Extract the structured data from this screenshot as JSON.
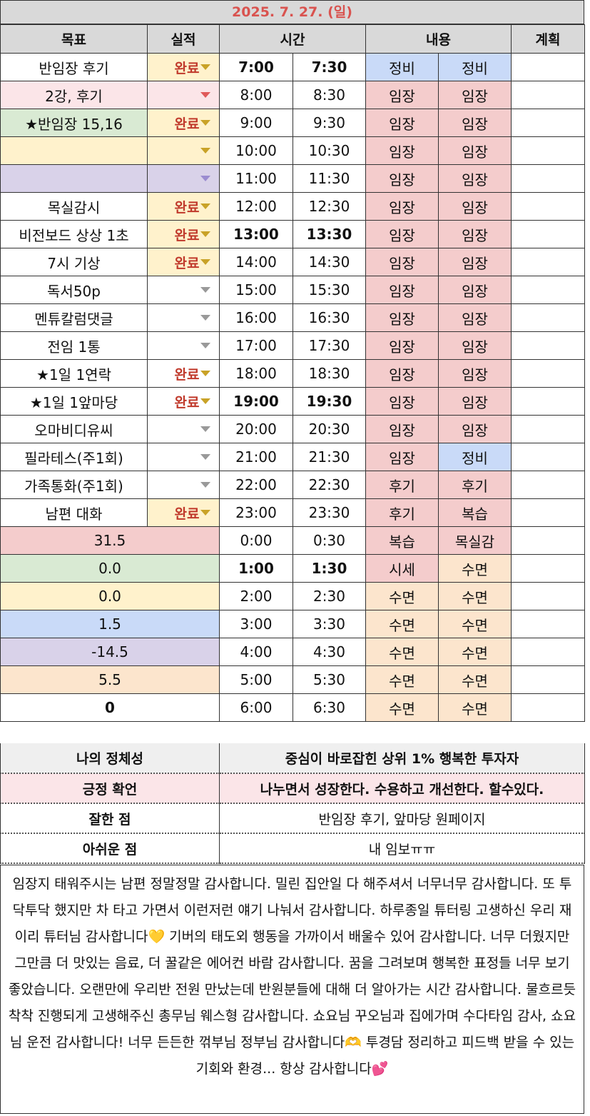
{
  "title": "2025. 7. 27. (일)",
  "headers": {
    "goal": "목표",
    "result": "실적",
    "time": "시간",
    "content": "내용",
    "plan": "계획"
  },
  "rows": [
    {
      "goal": "반임장 후기",
      "goal_color": "white",
      "result": "완료",
      "result_color": "yellow",
      "arrow": "gold",
      "t1": "7:00",
      "t2": "7:30",
      "bold": true,
      "c1": "정비",
      "c1_color": "blue",
      "c2": "정비",
      "c2_color": "blue"
    },
    {
      "goal": "2강, 후기",
      "goal_color": "lightpink",
      "result": "",
      "result_color": "lightpink",
      "arrow": "red",
      "t1": "8:00",
      "t2": "8:30",
      "bold": false,
      "c1": "임장",
      "c1_color": "pink",
      "c2": "임장",
      "c2_color": "pink"
    },
    {
      "goal": "★반임장 15,16",
      "goal_color": "green",
      "result": "완료",
      "result_color": "yellow",
      "arrow": "gold",
      "t1": "9:00",
      "t2": "9:30",
      "bold": false,
      "c1": "임장",
      "c1_color": "pink",
      "c2": "임장",
      "c2_color": "pink"
    },
    {
      "goal": "",
      "goal_color": "yellow",
      "result": "",
      "result_color": "yellow",
      "arrow": "gold",
      "t1": "10:00",
      "t2": "10:30",
      "bold": false,
      "c1": "임장",
      "c1_color": "pink",
      "c2": "임장",
      "c2_color": "pink"
    },
    {
      "goal": "",
      "goal_color": "purple",
      "result": "",
      "result_color": "purple",
      "arrow": "purple",
      "t1": "11:00",
      "t2": "11:30",
      "bold": false,
      "c1": "임장",
      "c1_color": "pink",
      "c2": "임장",
      "c2_color": "pink"
    },
    {
      "goal": "목실감시",
      "goal_color": "white",
      "result": "완료",
      "result_color": "yellow",
      "arrow": "gold",
      "t1": "12:00",
      "t2": "12:30",
      "bold": false,
      "c1": "임장",
      "c1_color": "pink",
      "c2": "임장",
      "c2_color": "pink"
    },
    {
      "goal": "비전보드 상상 1초",
      "goal_color": "white",
      "result": "완료",
      "result_color": "yellow",
      "arrow": "gold",
      "t1": "13:00",
      "t2": "13:30",
      "bold": true,
      "c1": "임장",
      "c1_color": "pink",
      "c2": "임장",
      "c2_color": "pink"
    },
    {
      "goal": "7시 기상",
      "goal_color": "white",
      "result": "완료",
      "result_color": "yellow",
      "arrow": "gold",
      "t1": "14:00",
      "t2": "14:30",
      "bold": false,
      "c1": "임장",
      "c1_color": "pink",
      "c2": "임장",
      "c2_color": "pink"
    },
    {
      "goal": "독서50p",
      "goal_color": "white",
      "result": "",
      "result_color": "white",
      "arrow": "grey",
      "t1": "15:00",
      "t2": "15:30",
      "bold": false,
      "c1": "임장",
      "c1_color": "pink",
      "c2": "임장",
      "c2_color": "pink"
    },
    {
      "goal": "멘튜칼럼댓글",
      "goal_color": "white",
      "result": "",
      "result_color": "white",
      "arrow": "grey",
      "t1": "16:00",
      "t2": "16:30",
      "bold": false,
      "c1": "임장",
      "c1_color": "pink",
      "c2": "임장",
      "c2_color": "pink"
    },
    {
      "goal": "전임 1통",
      "goal_color": "white",
      "result": "",
      "result_color": "white",
      "arrow": "grey",
      "t1": "17:00",
      "t2": "17:30",
      "bold": false,
      "c1": "임장",
      "c1_color": "pink",
      "c2": "임장",
      "c2_color": "pink"
    },
    {
      "goal": "★1일 1연락",
      "goal_color": "white",
      "result": "완료",
      "result_color": "white",
      "arrow": "gold",
      "t1": "18:00",
      "t2": "18:30",
      "bold": false,
      "c1": "임장",
      "c1_color": "pink",
      "c2": "임장",
      "c2_color": "pink"
    },
    {
      "goal": "★1일 1앞마당",
      "goal_color": "white",
      "result": "완료",
      "result_color": "white",
      "arrow": "gold",
      "t1": "19:00",
      "t2": "19:30",
      "bold": true,
      "c1": "임장",
      "c1_color": "pink",
      "c2": "임장",
      "c2_color": "pink"
    },
    {
      "goal": "오마비디유씨",
      "goal_color": "white",
      "result": "",
      "result_color": "white",
      "arrow": "grey",
      "t1": "20:00",
      "t2": "20:30",
      "bold": false,
      "c1": "임장",
      "c1_color": "pink",
      "c2": "임장",
      "c2_color": "pink"
    },
    {
      "goal": "필라테스(주1회)",
      "goal_color": "white",
      "result": "",
      "result_color": "white",
      "arrow": "grey",
      "t1": "21:00",
      "t2": "21:30",
      "bold": false,
      "c1": "임장",
      "c1_color": "pink",
      "c2": "정비",
      "c2_color": "blue"
    },
    {
      "goal": "가족통화(주1회)",
      "goal_color": "white",
      "result": "",
      "result_color": "white",
      "arrow": "grey",
      "t1": "22:00",
      "t2": "22:30",
      "bold": false,
      "c1": "후기",
      "c1_color": "pink",
      "c2": "후기",
      "c2_color": "pink"
    },
    {
      "goal": "남편 대화",
      "goal_color": "white",
      "result": "완료",
      "result_color": "yellow",
      "arrow": "gold",
      "t1": "23:00",
      "t2": "23:30",
      "bold": false,
      "c1": "후기",
      "c1_color": "pink",
      "c2": "복습",
      "c2_color": "pink"
    }
  ],
  "summary_rows": [
    {
      "value": "31.5",
      "color": "pink",
      "bold": false,
      "t1": "0:00",
      "t2": "0:30",
      "tbold": false,
      "c1": "복습",
      "c1_color": "pink",
      "c2": "목실감",
      "c2_color": "pink"
    },
    {
      "value": "0.0",
      "color": "green",
      "bold": false,
      "t1": "1:00",
      "t2": "1:30",
      "tbold": true,
      "c1": "시세",
      "c1_color": "pink",
      "c2": "수면",
      "c2_color": "peach"
    },
    {
      "value": "0.0",
      "color": "yellow",
      "bold": false,
      "t1": "2:00",
      "t2": "2:30",
      "tbold": false,
      "c1": "수면",
      "c1_color": "peach",
      "c2": "수면",
      "c2_color": "peach"
    },
    {
      "value": "1.5",
      "color": "blue",
      "bold": false,
      "t1": "3:00",
      "t2": "3:30",
      "tbold": false,
      "c1": "수면",
      "c1_color": "peach",
      "c2": "수면",
      "c2_color": "peach"
    },
    {
      "value": "-14.5",
      "color": "purple",
      "bold": false,
      "t1": "4:00",
      "t2": "4:30",
      "tbold": false,
      "c1": "수면",
      "c1_color": "peach",
      "c2": "수면",
      "c2_color": "peach"
    },
    {
      "value": "5.5",
      "color": "peach",
      "bold": false,
      "t1": "5:00",
      "t2": "5:30",
      "tbold": false,
      "c1": "수면",
      "c1_color": "peach",
      "c2": "수면",
      "c2_color": "peach"
    },
    {
      "value": "0",
      "color": "white",
      "bold": true,
      "t1": "6:00",
      "t2": "6:30",
      "tbold": false,
      "c1": "수면",
      "c1_color": "peach",
      "c2": "수면",
      "c2_color": "peach"
    }
  ],
  "info": [
    {
      "label": "나의 정체성",
      "value": "중심이 바로잡힌 상위 1% 행복한 투자자",
      "color": "grey",
      "bold": true
    },
    {
      "label": "긍정 확언",
      "value": "나누면서 성장한다. 수용하고 개선한다. 할수있다.",
      "color": "lightpink",
      "bold": true
    },
    {
      "label": "잘한 점",
      "value": "반임장 후기, 앞마당 원페이지",
      "color": "white",
      "bold": false
    },
    {
      "label": "아쉬운 점",
      "value": "내 임보ㅠㅠ",
      "color": "white",
      "bold": false
    }
  ],
  "gratitude": "임장지 태워주시는 남편 정말정말 감사합니다. 밀린 집안일 다 해주셔서 너무너무 감사합니다. 또 투닥투닥 했지만 차 타고 가면서 이런저런 얘기 나눠서 감사합니다. 하루종일 튜터링 고생하신 우리 재이리 튜터님 감사합니다💛 기버의 태도외 행동을 가까이서 배울수 있어 감사합니다. 너무 더웠지만 그만큼 더 맛있는 음료, 더 꿀같은 에어컨 바람 감사합니다. 꿈을 그려보며 행복한 표정들 너무 보기 좋았습니다. 오랜만에 우리반 전원 만났는데 반원분들에 대해 더 알아가는 시간 감사합니다. 물흐르듯 착착 진행되게 고생해주신 총무님 웨스형 감사합니다. 쇼요님 꾸오님과 집에가며 수다타임 감사, 쇼요님 운전 감사합니다! 너무 든든한 꺾부님 정부님 감사합니다🫶 투경담 정리하고 피드백 받을 수 있는 기회와 환경... 항상 감사합니다💕"
}
